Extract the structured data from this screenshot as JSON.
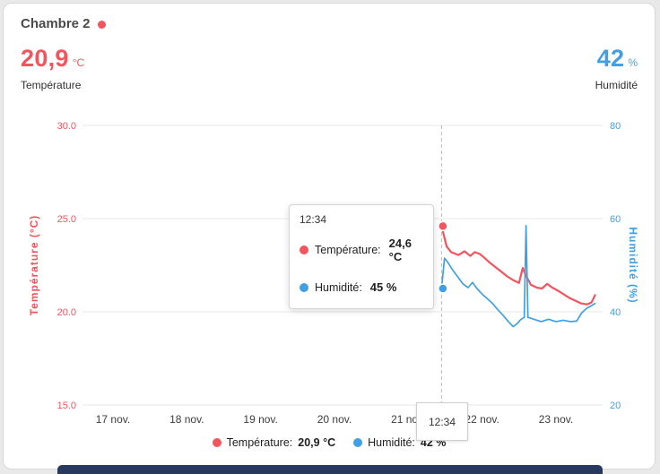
{
  "card": {
    "title": "Chambre 2"
  },
  "header": {
    "temperature": {
      "value": "20,9",
      "unit": "°C",
      "label": "Température"
    },
    "humidity": {
      "value": "42",
      "unit": "%",
      "label": "Humidité"
    }
  },
  "tooltip": {
    "time": "12:34",
    "rows": [
      {
        "label": "Température:",
        "value": "24,6 °C"
      },
      {
        "label": "Humidité:",
        "value": "45 %"
      }
    ]
  },
  "cursor_label": "12:34",
  "legend": [
    {
      "label": "Température:",
      "value": "20,9 °C"
    },
    {
      "label": "Humidité:",
      "value": "42 %"
    }
  ],
  "colors": {
    "temperature": "#f2555d",
    "humidity": "#41a0e3",
    "text_dark": "#3c3c3c",
    "grid": "#e9e9e9",
    "cursor_line": "#b9b9b9",
    "next_card": "#28395f"
  },
  "chart_data": {
    "type": "line",
    "x_ticks": [
      {
        "day": 17,
        "label": "17 nov."
      },
      {
        "day": 18,
        "label": "18 nov."
      },
      {
        "day": 19,
        "label": "19 nov."
      },
      {
        "day": 20,
        "label": "20 nov."
      },
      {
        "day": 21,
        "label": "21 nov."
      },
      {
        "day": 22,
        "label": "22 nov."
      },
      {
        "day": 23,
        "label": "23 nov."
      }
    ],
    "y_left": {
      "title": "Température (°C)",
      "min": 15,
      "max": 30,
      "ticks": [
        {
          "v": 30,
          "label": "30.0"
        },
        {
          "v": 25,
          "label": "25.0"
        },
        {
          "v": 20,
          "label": "20.0"
        },
        {
          "v": 15,
          "label": "15.0"
        }
      ]
    },
    "y_right": {
      "title": "Humidité (%)",
      "min": 20,
      "max": 80,
      "ticks": [
        {
          "v": 80,
          "label": "80"
        },
        {
          "v": 60,
          "label": "60"
        },
        {
          "v": 40,
          "label": "40"
        },
        {
          "v": 20,
          "label": "20"
        }
      ]
    },
    "cursor": {
      "day": 21.45,
      "time": "12:34",
      "temperature": 24.6,
      "humidity": 45
    },
    "series": [
      {
        "name": "Température",
        "axis": "left",
        "color": "#f2555d",
        "width": 2.2,
        "points": [
          [
            21.45,
            24.6
          ],
          [
            21.52,
            23.5
          ],
          [
            21.58,
            23.2
          ],
          [
            21.68,
            23.05
          ],
          [
            21.76,
            23.25
          ],
          [
            21.84,
            23.0
          ],
          [
            21.9,
            23.2
          ],
          [
            21.97,
            23.1
          ],
          [
            22.03,
            22.9
          ],
          [
            22.1,
            22.65
          ],
          [
            22.18,
            22.4
          ],
          [
            22.26,
            22.15
          ],
          [
            22.34,
            21.9
          ],
          [
            22.42,
            21.7
          ],
          [
            22.5,
            21.55
          ],
          [
            22.55,
            22.35
          ],
          [
            22.6,
            21.9
          ],
          [
            22.66,
            21.45
          ],
          [
            22.74,
            21.3
          ],
          [
            22.81,
            21.25
          ],
          [
            22.88,
            21.5
          ],
          [
            22.95,
            21.3
          ],
          [
            23.02,
            21.15
          ],
          [
            23.1,
            20.95
          ],
          [
            23.18,
            20.75
          ],
          [
            23.26,
            20.6
          ],
          [
            23.34,
            20.45
          ],
          [
            23.42,
            20.4
          ],
          [
            23.48,
            20.5
          ],
          [
            23.53,
            20.9
          ]
        ]
      },
      {
        "name": "Humidité",
        "axis": "right",
        "color": "#41a0e3",
        "width": 1.7,
        "points": [
          [
            21.45,
            45.0
          ],
          [
            21.49,
            51.5
          ],
          [
            21.54,
            50.5
          ],
          [
            21.6,
            49.0
          ],
          [
            21.67,
            47.5
          ],
          [
            21.74,
            46.0
          ],
          [
            21.81,
            45.2
          ],
          [
            21.87,
            46.3
          ],
          [
            21.93,
            45.0
          ],
          [
            22.0,
            43.8
          ],
          [
            22.07,
            42.8
          ],
          [
            22.14,
            41.8
          ],
          [
            22.21,
            40.5
          ],
          [
            22.28,
            39.3
          ],
          [
            22.35,
            38.0
          ],
          [
            22.42,
            36.8
          ],
          [
            22.47,
            37.4
          ],
          [
            22.52,
            38.3
          ],
          [
            22.57,
            38.8
          ],
          [
            22.595,
            58.5
          ],
          [
            22.62,
            38.8
          ],
          [
            22.7,
            38.4
          ],
          [
            22.8,
            37.9
          ],
          [
            22.9,
            38.4
          ],
          [
            23.0,
            37.9
          ],
          [
            23.1,
            38.2
          ],
          [
            23.2,
            37.9
          ],
          [
            23.28,
            38.0
          ],
          [
            23.35,
            39.8
          ],
          [
            23.42,
            40.8
          ],
          [
            23.48,
            41.3
          ],
          [
            23.53,
            41.8
          ]
        ]
      }
    ]
  }
}
